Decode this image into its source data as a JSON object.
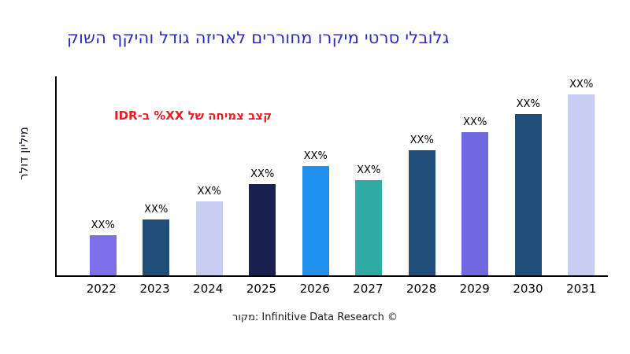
{
  "title": "גלובלי סרטי מיקרו מחוררים לאריזה גודל והיקף השוק",
  "annotation": "קצב צמיחה של XX% ב-IDR",
  "source": "מקור: Infinitive Data Research ©",
  "colors": {
    "title": "#2d2db8",
    "annotation": "#ec1c24",
    "axis": "#000000"
  },
  "chart_data": {
    "type": "bar",
    "title": "גלובלי סרטי מיקרו מחוררים לאריזה גודל והיקף השוק",
    "xlabel": "",
    "ylabel": "מיליון דולר",
    "ylim": [
      0,
      100
    ],
    "grid": false,
    "legend": null,
    "categories": [
      "2022",
      "2023",
      "2024",
      "2025",
      "2026",
      "2027",
      "2028",
      "2029",
      "2030",
      "2031"
    ],
    "values": [
      20,
      28,
      37,
      46,
      55,
      48,
      63,
      72,
      81,
      91
    ],
    "value_labels": [
      "XX%",
      "XX%",
      "XX%",
      "XX%",
      "XX%",
      "XX%",
      "XX%",
      "XX%",
      "XX%",
      "XX%"
    ],
    "bar_colors": [
      "#7d6fe8",
      "#1f4e79",
      "#c8cdf4",
      "#1a2150",
      "#2090ee",
      "#2faaa5",
      "#1f4e79",
      "#6f68e0",
      "#1f4e79",
      "#c8cdf4"
    ]
  }
}
